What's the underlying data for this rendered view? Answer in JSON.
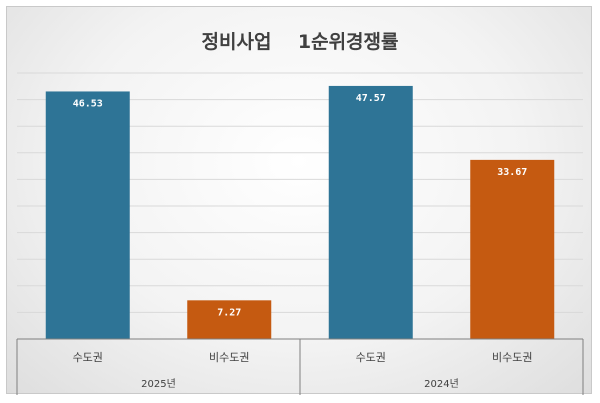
{
  "chart_data": {
    "type": "bar",
    "title": "정비사업    1순위경쟁률",
    "groups": [
      {
        "name": "2025년",
        "bars": [
          {
            "category": "수도권",
            "value": 46.53,
            "label": "46.53",
            "color": "#2e7496"
          },
          {
            "category": "비수도권",
            "value": 7.27,
            "label": "7.27",
            "color": "#c55a11"
          }
        ]
      },
      {
        "name": "2024년",
        "bars": [
          {
            "category": "수도권",
            "value": 47.57,
            "label": "47.57",
            "color": "#2e7496"
          },
          {
            "category": "비수도권",
            "value": 33.67,
            "label": "33.67",
            "color": "#c55a11"
          }
        ]
      }
    ],
    "ylim": [
      0,
      50
    ],
    "grid": true,
    "legend": "none",
    "colors": {
      "capital": "#2e7496",
      "non_capital": "#c55a11"
    }
  }
}
